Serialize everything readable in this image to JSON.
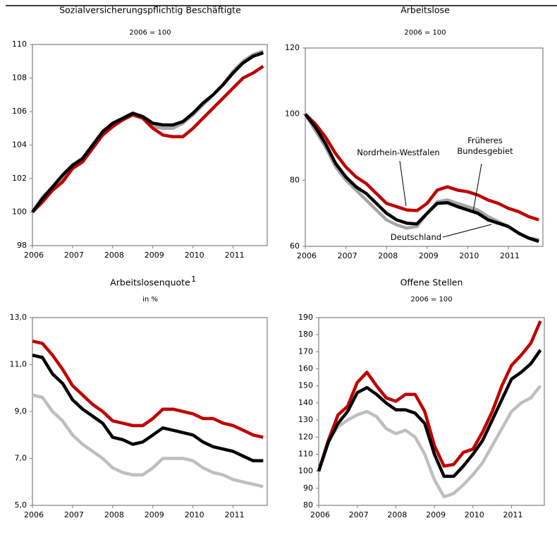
{
  "chart_data": [
    {
      "type": "line",
      "title": "Sozialversicherungspflichtig Beschäftigte",
      "subtitle": "2006 = 100",
      "x": [
        2006,
        2006.25,
        2006.5,
        2006.75,
        2007,
        2007.25,
        2007.5,
        2007.75,
        2008,
        2008.25,
        2008.5,
        2008.75,
        2009,
        2009.25,
        2009.5,
        2009.75,
        2010,
        2010.25,
        2010.5,
        2010.75,
        2011,
        2011.25,
        2011.5,
        2011.75
      ],
      "xlim": [
        2006,
        2011.85
      ],
      "xticks": [
        2006,
        2007,
        2008,
        2009,
        2010,
        2011
      ],
      "ylim": [
        98,
        110
      ],
      "yticks": [
        98,
        100,
        102,
        104,
        106,
        108,
        110
      ],
      "series": [
        {
          "color": "#a6a6a6",
          "values": [
            100,
            100.9,
            101.5,
            102,
            102.6,
            103.2,
            104,
            104.6,
            105.2,
            105.6,
            105.9,
            105.6,
            105.1,
            105,
            105,
            105.3,
            105.8,
            106.4,
            107,
            107.6,
            108.4,
            109,
            109.4,
            109.6
          ]
        },
        {
          "color": "#c00000",
          "values": [
            100,
            100.6,
            101.3,
            101.8,
            102.6,
            103,
            103.8,
            104.6,
            105.1,
            105.5,
            105.8,
            105.6,
            105,
            104.6,
            104.5,
            104.5,
            105,
            105.6,
            106.2,
            106.8,
            107.4,
            108,
            108.3,
            108.7
          ]
        },
        {
          "color": "#000000",
          "values": [
            100,
            100.8,
            101.5,
            102.2,
            102.8,
            103.2,
            104,
            104.8,
            105.3,
            105.6,
            105.9,
            105.7,
            105.3,
            105.2,
            105.2,
            105.4,
            105.9,
            106.5,
            107,
            107.6,
            108.3,
            108.9,
            109.3,
            109.5
          ]
        }
      ]
    },
    {
      "type": "line",
      "title": "Arbeitslose",
      "subtitle": "2006 = 100",
      "x": [
        2006,
        2006.25,
        2006.5,
        2006.75,
        2007,
        2007.25,
        2007.5,
        2007.75,
        2008,
        2008.25,
        2008.5,
        2008.75,
        2009,
        2009.25,
        2009.5,
        2009.75,
        2010,
        2010.25,
        2010.5,
        2010.75,
        2011,
        2011.25,
        2011.5,
        2011.75
      ],
      "xlim": [
        2006,
        2011.85
      ],
      "xticks": [
        2006,
        2007,
        2008,
        2009,
        2010,
        2011
      ],
      "ylim": [
        60,
        120
      ],
      "yticks": [
        60,
        80,
        100,
        120
      ],
      "series": [
        {
          "name": "Früheres Bundesgebiet",
          "color": "#a6a6a6",
          "values": [
            100,
            95,
            90,
            84,
            80,
            77,
            74,
            71,
            68,
            66.5,
            65.5,
            66,
            70,
            73.5,
            74,
            73,
            72,
            71,
            69,
            67.5,
            66,
            64,
            62.5,
            62
          ]
        },
        {
          "name": "Nordrhein-Westfalen",
          "color": "#c00000",
          "values": [
            100,
            97,
            93,
            88,
            84,
            81,
            79,
            76,
            73,
            72,
            71,
            70.8,
            73,
            77,
            78,
            77,
            76.5,
            75.5,
            74,
            73,
            71.5,
            70.5,
            69,
            68
          ]
        },
        {
          "name": "Deutschland",
          "color": "#000000",
          "values": [
            100,
            96,
            91,
            85,
            81,
            78,
            76,
            73,
            70,
            68,
            67,
            66.8,
            70,
            73,
            73.2,
            72,
            71,
            70,
            68,
            67,
            66,
            64,
            62.5,
            61.5
          ]
        }
      ]
    },
    {
      "type": "line",
      "title": "Arbeitslosenquote",
      "title_note": "1",
      "subtitle": "in %",
      "x": [
        2006,
        2006.25,
        2006.5,
        2006.75,
        2007,
        2007.25,
        2007.5,
        2007.75,
        2008,
        2008.25,
        2008.5,
        2008.75,
        2009,
        2009.25,
        2009.5,
        2009.75,
        2010,
        2010.25,
        2010.5,
        2010.75,
        2011,
        2011.25,
        2011.5,
        2011.75
      ],
      "xlim": [
        2006,
        2011.85
      ],
      "xticks": [
        2006,
        2007,
        2008,
        2009,
        2010,
        2011
      ],
      "ylim": [
        5,
        13
      ],
      "yticks": [
        {
          "value": 5,
          "label": "5,0"
        },
        {
          "value": 7,
          "label": "7,0"
        },
        {
          "value": 9,
          "label": "9,0"
        },
        {
          "value": 11,
          "label": "11,0"
        },
        {
          "value": 13,
          "label": "13,0"
        }
      ],
      "series": [
        {
          "color": "#bfbfbf",
          "values": [
            9.7,
            9.6,
            9,
            8.6,
            8,
            7.6,
            7.3,
            7,
            6.6,
            6.4,
            6.3,
            6.3,
            6.6,
            7,
            7,
            7,
            6.9,
            6.6,
            6.4,
            6.3,
            6.1,
            6,
            5.9,
            5.8
          ]
        },
        {
          "color": "#c00000",
          "values": [
            12,
            11.9,
            11.4,
            10.8,
            10.1,
            9.7,
            9.3,
            9,
            8.6,
            8.5,
            8.4,
            8.4,
            8.7,
            9.1,
            9.1,
            9,
            8.9,
            8.7,
            8.7,
            8.5,
            8.4,
            8.2,
            8,
            7.9
          ]
        },
        {
          "color": "#000000",
          "values": [
            11.4,
            11.3,
            10.6,
            10.2,
            9.5,
            9.1,
            8.8,
            8.5,
            7.9,
            7.8,
            7.6,
            7.7,
            8,
            8.3,
            8.2,
            8.1,
            8,
            7.7,
            7.5,
            7.4,
            7.3,
            7.1,
            6.9,
            6.9
          ]
        }
      ]
    },
    {
      "type": "line",
      "title": "Offene Stellen",
      "subtitle": "2006 = 100",
      "x": [
        2006,
        2006.25,
        2006.5,
        2006.75,
        2007,
        2007.25,
        2007.5,
        2007.75,
        2008,
        2008.25,
        2008.5,
        2008.75,
        2009,
        2009.25,
        2009.5,
        2009.75,
        2010,
        2010.25,
        2010.5,
        2010.75,
        2011,
        2011.25,
        2011.5,
        2011.75
      ],
      "xlim": [
        2006,
        2011.85
      ],
      "xticks": [
        2006,
        2007,
        2008,
        2009,
        2010,
        2011
      ],
      "ylim": [
        80,
        190
      ],
      "yticks": [
        80,
        90,
        100,
        110,
        120,
        130,
        140,
        150,
        160,
        170,
        180,
        190
      ],
      "series": [
        {
          "color": "#bfbfbf",
          "values": [
            100,
            118,
            126,
            130,
            133,
            135,
            132,
            125,
            122,
            124,
            120,
            110,
            95,
            85,
            87,
            92,
            98,
            105,
            115,
            125,
            135,
            140,
            143,
            150
          ]
        },
        {
          "color": "#c00000",
          "values": [
            100,
            118,
            133,
            138,
            152,
            158,
            150,
            143,
            141,
            145,
            145,
            135,
            115,
            103,
            104,
            111,
            113,
            123,
            135,
            150,
            162,
            168,
            175,
            188
          ]
        },
        {
          "color": "#000000",
          "values": [
            100,
            117,
            128,
            135,
            146,
            149,
            145,
            140,
            136,
            136,
            134,
            128,
            110,
            97,
            97,
            103,
            110,
            118,
            130,
            142,
            154,
            158,
            163,
            171
          ]
        }
      ]
    }
  ]
}
